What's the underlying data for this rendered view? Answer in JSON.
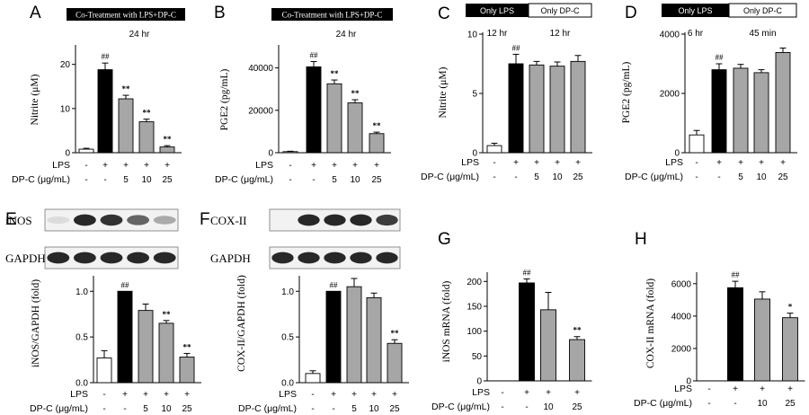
{
  "chart_data": [
    {
      "panel": "A",
      "type": "bar",
      "header": {
        "text": "Co-Treatment with LPS+DP-C",
        "duration": "24 hr"
      },
      "ylabel": "Nitrite (μM)",
      "yticks": [
        0,
        10,
        20
      ],
      "ylim": [
        0,
        24
      ],
      "values": [
        0.8,
        18.8,
        12.2,
        7.0,
        1.3
      ],
      "errors": [
        0.2,
        1.5,
        0.8,
        0.6,
        0.3
      ],
      "fills": [
        "#ffffff",
        "#000000",
        "#a6a6a6",
        "#a6a6a6",
        "#a6a6a6"
      ],
      "sig": [
        "",
        "##",
        "**",
        "**",
        "**"
      ],
      "rows": [
        {
          "label": "LPS",
          "cells": [
            "-",
            "+",
            "+",
            "+",
            "+"
          ]
        },
        {
          "label": "DP-C (μg/mL)",
          "cells": [
            "-",
            "-",
            "5",
            "10",
            "25"
          ]
        }
      ]
    },
    {
      "panel": "B",
      "type": "bar",
      "header": {
        "text": "Co-Treatment with LPS+DP-C",
        "duration": "24 hr"
      },
      "ylabel": "PGE2 (pg/mL)",
      "yticks": [
        0,
        20000,
        40000
      ],
      "ylim": [
        0,
        50000
      ],
      "values": [
        500,
        40500,
        32500,
        23500,
        9000
      ],
      "errors": [
        200,
        2500,
        1800,
        1500,
        700
      ],
      "fills": [
        "#ffffff",
        "#000000",
        "#a6a6a6",
        "#a6a6a6",
        "#a6a6a6"
      ],
      "sig": [
        "",
        "##",
        "**",
        "**",
        "**"
      ],
      "rows": [
        {
          "label": "LPS",
          "cells": [
            "-",
            "+",
            "+",
            "+",
            "+"
          ]
        },
        {
          "label": "DP-C (μg/mL)",
          "cells": [
            "-",
            "-",
            "5",
            "10",
            "25"
          ]
        }
      ]
    },
    {
      "panel": "C",
      "type": "bar",
      "header": {
        "black": "Only LPS",
        "white": "Only DP-C",
        "black_dur": "12 hr",
        "white_dur": "12 hr"
      },
      "ylabel": "Nitrite (μM)",
      "yticks": [
        0,
        5,
        10
      ],
      "ylim": [
        0,
        10
      ],
      "values": [
        0.6,
        7.5,
        7.4,
        7.3,
        7.7
      ],
      "errors": [
        0.2,
        0.8,
        0.3,
        0.35,
        0.5
      ],
      "fills": [
        "#ffffff",
        "#000000",
        "#a6a6a6",
        "#a6a6a6",
        "#a6a6a6"
      ],
      "sig": [
        "",
        "##",
        "",
        "",
        ""
      ],
      "rows": [
        {
          "label": "LPS",
          "cells": [
            "-",
            "+",
            "+",
            "+",
            "+"
          ]
        },
        {
          "label": "DP-C (μg/mL)",
          "cells": [
            "-",
            "-",
            "5",
            "10",
            "25"
          ]
        }
      ]
    },
    {
      "panel": "D",
      "type": "bar",
      "header": {
        "black": "Only LPS",
        "white": "Only DP-C",
        "black_dur": "6 hr",
        "white_dur": "45 min"
      },
      "ylabel": "PGE2 (pg/mL)",
      "yticks": [
        0,
        2000,
        4000
      ],
      "ylim": [
        0,
        4000
      ],
      "values": [
        600,
        2800,
        2850,
        2700,
        3380
      ],
      "errors": [
        150,
        200,
        130,
        100,
        150
      ],
      "fills": [
        "#ffffff",
        "#000000",
        "#a6a6a6",
        "#a6a6a6",
        "#a6a6a6"
      ],
      "sig": [
        "",
        "##",
        "",
        "",
        ""
      ],
      "rows": [
        {
          "label": "LPS",
          "cells": [
            "-",
            "+",
            "+",
            "+",
            "+"
          ]
        },
        {
          "label": "DP-C (μg/mL)",
          "cells": [
            "-",
            "-",
            "5",
            "10",
            "25"
          ]
        }
      ]
    },
    {
      "panel": "E",
      "type": "bar",
      "blots": [
        {
          "label": "iNOS",
          "intensities": [
            0.05,
            0.95,
            0.9,
            0.65,
            0.3
          ]
        },
        {
          "label": "GAPDH",
          "intensities": [
            0.95,
            0.95,
            0.95,
            0.95,
            0.95
          ]
        }
      ],
      "ylabel": "iNOS/GAPDH (fold)",
      "yticks": [
        "0.0",
        "0.5",
        "1.0"
      ],
      "ylim": [
        0,
        1.15
      ],
      "values": [
        0.27,
        1.0,
        0.79,
        0.65,
        0.28
      ],
      "errors": [
        0.08,
        0.0,
        0.07,
        0.03,
        0.04
      ],
      "fills": [
        "#ffffff",
        "#000000",
        "#a6a6a6",
        "#a6a6a6",
        "#a6a6a6"
      ],
      "sig": [
        "",
        "##",
        "",
        "**",
        "**"
      ],
      "rows": [
        {
          "label": "LPS",
          "cells": [
            "-",
            "+",
            "+",
            "+",
            "+"
          ]
        },
        {
          "label": "DP-C (μg/mL)",
          "cells": [
            "-",
            "-",
            "5",
            "10",
            "25"
          ]
        }
      ]
    },
    {
      "panel": "F",
      "type": "bar",
      "blots": [
        {
          "label": "COX-II",
          "intensities": [
            0.0,
            0.95,
            0.95,
            0.95,
            0.85
          ]
        },
        {
          "label": "GAPDH",
          "intensities": [
            0.95,
            0.95,
            0.95,
            0.95,
            0.95
          ]
        }
      ],
      "ylabel": "COX-II/GAPDH (fold)",
      "yticks": [
        "0.0",
        "0.5",
        "1.0"
      ],
      "ylim": [
        0,
        1.15
      ],
      "values": [
        0.1,
        1.0,
        1.05,
        0.93,
        0.43
      ],
      "errors": [
        0.03,
        0.0,
        0.09,
        0.05,
        0.04
      ],
      "fills": [
        "#ffffff",
        "#000000",
        "#a6a6a6",
        "#a6a6a6",
        "#a6a6a6"
      ],
      "sig": [
        "",
        "##",
        "",
        "",
        "**"
      ],
      "rows": [
        {
          "label": "LPS",
          "cells": [
            "-",
            "+",
            "+",
            "+",
            "+"
          ]
        },
        {
          "label": "DP-C (μg/mL)",
          "cells": [
            "-",
            "-",
            "5",
            "10",
            "25"
          ]
        }
      ]
    },
    {
      "panel": "G",
      "type": "bar",
      "ylabel": "iNOS mRNA (fold)",
      "yticks": [
        0,
        50,
        100,
        150,
        200
      ],
      "ylim": [
        0,
        215
      ],
      "values": [
        0,
        197,
        143,
        83
      ],
      "errors": [
        0,
        8,
        35,
        6
      ],
      "fills": [
        "#ffffff",
        "#000000",
        "#a6a6a6",
        "#a6a6a6"
      ],
      "sig": [
        "",
        "##",
        "",
        "**"
      ],
      "rows": [
        {
          "label": "LPS",
          "cells": [
            "-",
            "+",
            "+",
            "+"
          ]
        },
        {
          "label": "DP-C (μg/mL)",
          "cells": [
            "-",
            "-",
            "10",
            "25"
          ]
        }
      ]
    },
    {
      "panel": "H",
      "type": "bar",
      "ylabel": "COX-II mRNA (fold)",
      "yticks": [
        0,
        2000,
        4000,
        6000
      ],
      "ylim": [
        0,
        6600
      ],
      "values": [
        0,
        5750,
        5050,
        3900
      ],
      "errors": [
        0,
        400,
        450,
        280
      ],
      "fills": [
        "#ffffff",
        "#000000",
        "#a6a6a6",
        "#a6a6a6"
      ],
      "sig": [
        "",
        "##",
        "",
        "*"
      ],
      "rows": [
        {
          "label": "LPS",
          "cells": [
            "-",
            "+",
            "+",
            "+"
          ]
        },
        {
          "label": "DP-C (μg/mL)",
          "cells": [
            "-",
            "-",
            "10",
            "25"
          ]
        }
      ]
    }
  ]
}
